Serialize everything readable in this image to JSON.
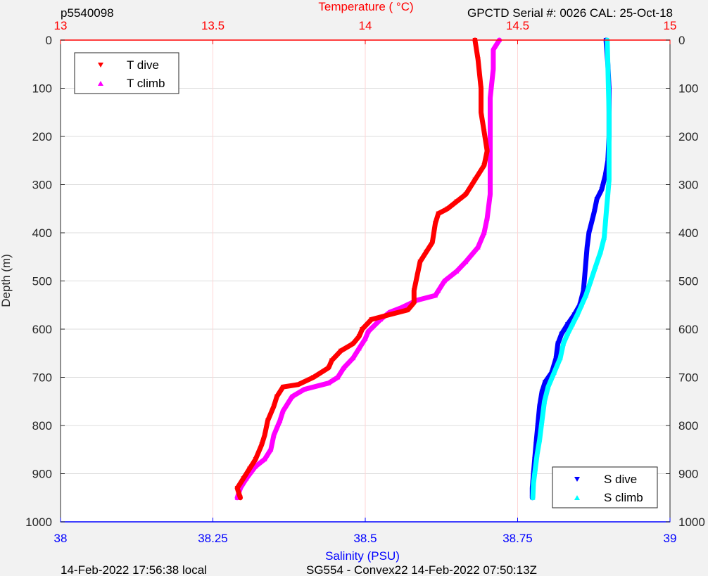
{
  "header": {
    "left": "p5540098",
    "right": "GPCTD Serial #: 0026 CAL: 25-Oct-18"
  },
  "footer": {
    "left": "14-Feb-2022 17:56:38 local",
    "center": "SG554 - Convex22 14-Feb-2022 07:50:13Z"
  },
  "chart_data": {
    "type": "scatter",
    "title": "",
    "ylabel": "Depth (m)",
    "y_reversed": true,
    "ylim": [
      0,
      1000
    ],
    "yticks": [
      "0",
      "100",
      "200",
      "300",
      "400",
      "500",
      "600",
      "700",
      "800",
      "900",
      "1000"
    ],
    "yticks_right": [
      "0",
      "100",
      "200",
      "300",
      "400",
      "500",
      "600",
      "700",
      "800",
      "900",
      "1000"
    ],
    "grid": true,
    "top_axis": {
      "label": "Temperature (   °C)",
      "lim": [
        13,
        15
      ],
      "ticks": [
        "13",
        "13.5",
        "14",
        "14.5",
        "15"
      ],
      "color": "#ff0000"
    },
    "bottom_axis": {
      "label": "Salinity (PSU)",
      "lim": [
        38,
        39
      ],
      "ticks": [
        "38",
        "38.25",
        "38.5",
        "38.75",
        "39"
      ],
      "color": "#0000ff"
    },
    "legend_temperature": {
      "placement": "top-left",
      "entries": [
        "T dive",
        "T climb"
      ]
    },
    "legend_salinity": {
      "placement": "bottom-right",
      "entries": [
        "S dive",
        "S climb"
      ]
    },
    "series": [
      {
        "name": "T dive",
        "axis": "temperature",
        "color": "#ff0000",
        "marker": "triangle-down",
        "points": [
          [
            14.36,
            0
          ],
          [
            14.37,
            40
          ],
          [
            14.38,
            100
          ],
          [
            14.38,
            150
          ],
          [
            14.39,
            190
          ],
          [
            14.4,
            230
          ],
          [
            14.39,
            260
          ],
          [
            14.36,
            290
          ],
          [
            14.33,
            320
          ],
          [
            14.3,
            335
          ],
          [
            14.27,
            350
          ],
          [
            14.24,
            360
          ],
          [
            14.23,
            380
          ],
          [
            14.22,
            420
          ],
          [
            14.2,
            440
          ],
          [
            14.18,
            460
          ],
          [
            14.17,
            490
          ],
          [
            14.16,
            520
          ],
          [
            14.16,
            545
          ],
          [
            14.14,
            560
          ],
          [
            14.08,
            570
          ],
          [
            14.02,
            580
          ],
          [
            13.99,
            600
          ],
          [
            13.98,
            615
          ],
          [
            13.96,
            630
          ],
          [
            13.92,
            645
          ],
          [
            13.89,
            665
          ],
          [
            13.88,
            680
          ],
          [
            13.83,
            700
          ],
          [
            13.78,
            715
          ],
          [
            13.73,
            720
          ],
          [
            13.71,
            740
          ],
          [
            13.7,
            760
          ],
          [
            13.68,
            790
          ],
          [
            13.67,
            820
          ],
          [
            13.66,
            840
          ],
          [
            13.64,
            870
          ],
          [
            13.62,
            890
          ],
          [
            13.6,
            910
          ],
          [
            13.58,
            930
          ],
          [
            13.59,
            950
          ]
        ]
      },
      {
        "name": "T climb",
        "axis": "temperature",
        "color": "#ff00ff",
        "marker": "triangle-up",
        "points": [
          [
            14.44,
            0
          ],
          [
            14.42,
            20
          ],
          [
            14.42,
            60
          ],
          [
            14.41,
            120
          ],
          [
            14.41,
            170
          ],
          [
            14.41,
            220
          ],
          [
            14.41,
            270
          ],
          [
            14.41,
            320
          ],
          [
            14.4,
            370
          ],
          [
            14.39,
            400
          ],
          [
            14.37,
            430
          ],
          [
            14.33,
            460
          ],
          [
            14.3,
            480
          ],
          [
            14.26,
            500
          ],
          [
            14.24,
            520
          ],
          [
            14.23,
            530
          ],
          [
            14.17,
            540
          ],
          [
            14.12,
            555
          ],
          [
            14.08,
            565
          ],
          [
            14.05,
            580
          ],
          [
            14.01,
            605
          ],
          [
            14.0,
            620
          ],
          [
            13.98,
            640
          ],
          [
            13.96,
            660
          ],
          [
            13.93,
            680
          ],
          [
            13.91,
            700
          ],
          [
            13.88,
            712
          ],
          [
            13.8,
            725
          ],
          [
            13.76,
            740
          ],
          [
            13.73,
            770
          ],
          [
            13.72,
            790
          ],
          [
            13.7,
            820
          ],
          [
            13.69,
            850
          ],
          [
            13.67,
            870
          ],
          [
            13.64,
            885
          ],
          [
            13.61,
            910
          ],
          [
            13.59,
            930
          ],
          [
            13.58,
            950
          ]
        ]
      },
      {
        "name": "S dive",
        "axis": "salinity",
        "color": "#0000ff",
        "marker": "triangle-down",
        "points": [
          [
            38.895,
            0
          ],
          [
            38.898,
            50
          ],
          [
            38.9,
            100
          ],
          [
            38.9,
            150
          ],
          [
            38.9,
            200
          ],
          [
            38.898,
            250
          ],
          [
            38.894,
            280
          ],
          [
            38.888,
            310
          ],
          [
            38.88,
            330
          ],
          [
            38.876,
            355
          ],
          [
            38.872,
            375
          ],
          [
            38.867,
            400
          ],
          [
            38.864,
            430
          ],
          [
            38.862,
            460
          ],
          [
            38.86,
            490
          ],
          [
            38.858,
            520
          ],
          [
            38.852,
            550
          ],
          [
            38.843,
            570
          ],
          [
            38.832,
            590
          ],
          [
            38.822,
            610
          ],
          [
            38.816,
            630
          ],
          [
            38.813,
            660
          ],
          [
            38.806,
            690
          ],
          [
            38.795,
            710
          ],
          [
            38.79,
            730
          ],
          [
            38.786,
            760
          ],
          [
            38.783,
            800
          ],
          [
            38.78,
            840
          ],
          [
            38.778,
            870
          ],
          [
            38.776,
            900
          ],
          [
            38.774,
            930
          ],
          [
            38.774,
            950
          ]
        ]
      },
      {
        "name": "S climb",
        "axis": "salinity",
        "color": "#00ffff",
        "marker": "triangle-up",
        "points": [
          [
            38.897,
            0
          ],
          [
            38.898,
            50
          ],
          [
            38.899,
            100
          ],
          [
            38.9,
            150
          ],
          [
            38.9,
            200
          ],
          [
            38.9,
            250
          ],
          [
            38.9,
            290
          ],
          [
            38.898,
            320
          ],
          [
            38.896,
            350
          ],
          [
            38.894,
            380
          ],
          [
            38.892,
            410
          ],
          [
            38.886,
            440
          ],
          [
            38.878,
            470
          ],
          [
            38.87,
            500
          ],
          [
            38.862,
            530
          ],
          [
            38.855,
            550
          ],
          [
            38.848,
            570
          ],
          [
            38.84,
            590
          ],
          [
            38.832,
            610
          ],
          [
            38.825,
            630
          ],
          [
            38.82,
            660
          ],
          [
            38.81,
            690
          ],
          [
            38.8,
            720
          ],
          [
            38.794,
            750
          ],
          [
            38.79,
            790
          ],
          [
            38.786,
            830
          ],
          [
            38.782,
            860
          ],
          [
            38.779,
            890
          ],
          [
            38.776,
            920
          ],
          [
            38.775,
            950
          ]
        ]
      }
    ]
  }
}
